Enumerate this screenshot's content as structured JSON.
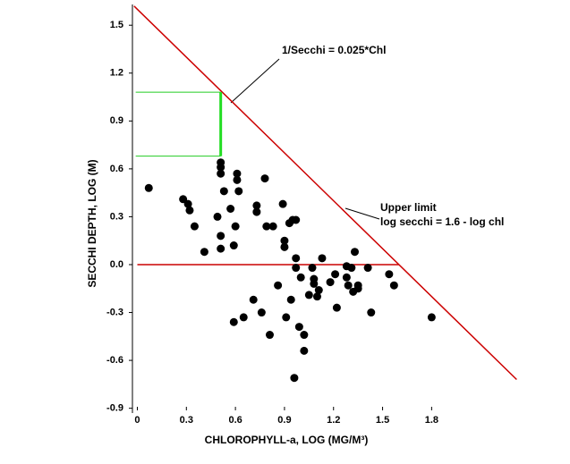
{
  "chart_data": {
    "type": "scatter",
    "x_label": "CHLOROPHYLL-a, LOG (MG/M³)",
    "y_label": "SECCHI DEPTH, LOG (M)",
    "xlim": [
      -0.03,
      2.4
    ],
    "ylim": [
      -0.93,
      1.63
    ],
    "xticks": [
      0,
      0.3,
      0.6,
      0.9,
      1.2,
      1.5,
      1.8
    ],
    "yticks": [
      1.5,
      1.2,
      0.9,
      0.6,
      0.3,
      {
        "value": 0,
        "label": "0.0"
      },
      -0.3,
      -0.6,
      -0.9
    ],
    "color": "#000000",
    "x": [
      0.07,
      0.28,
      0.31,
      0.32,
      0.35,
      0.41,
      0.49,
      0.51,
      0.51,
      0.51,
      0.53,
      0.57,
      0.6,
      0.59,
      0.61,
      0.62,
      0.61,
      0.59,
      0.65,
      0.51,
      0.51,
      0.71,
      0.73,
      0.73,
      0.76,
      0.78,
      0.79,
      0.81,
      0.83,
      0.86,
      0.89,
      0.9,
      0.9,
      0.91,
      0.93,
      0.94,
      0.95,
      0.97,
      0.97,
      0.97,
      0.96,
      0.99,
      1.0,
      1.02,
      1.02,
      1.05,
      1.07,
      1.08,
      1.08,
      1.1,
      1.11,
      1.13,
      1.18,
      1.21,
      1.22,
      1.28,
      1.29,
      1.28,
      1.33,
      1.31,
      1.35,
      1.32,
      1.35,
      1.41,
      1.43,
      1.54,
      1.57,
      1.8
    ],
    "y": [
      0.48,
      0.41,
      0.38,
      0.34,
      0.24,
      0.08,
      0.3,
      0.64,
      0.61,
      0.57,
      0.46,
      0.35,
      0.24,
      0.12,
      0.53,
      0.46,
      0.57,
      -0.36,
      -0.33,
      0.18,
      0.1,
      -0.22,
      0.37,
      0.33,
      -0.3,
      0.54,
      0.24,
      -0.44,
      0.24,
      -0.13,
      0.38,
      0.11,
      0.15,
      -0.33,
      0.26,
      -0.22,
      0.28,
      0.28,
      -0.02,
      0.04,
      -0.71,
      -0.39,
      -0.08,
      -0.44,
      -0.54,
      -0.19,
      -0.02,
      -0.09,
      -0.12,
      -0.2,
      -0.16,
      0.04,
      -0.11,
      -0.06,
      -0.27,
      -0.01,
      -0.13,
      -0.08,
      0.08,
      -0.02,
      -0.13,
      -0.17,
      -0.15,
      -0.02,
      -0.3,
      -0.06,
      -0.13,
      -0.33
    ],
    "reference_lines": [
      {
        "color": "#cc0000",
        "x": [
          -0.02,
          2.32
        ],
        "y": [
          1.62,
          -0.72
        ]
      },
      {
        "color": "#cc0000",
        "x": [
          0,
          1.6
        ],
        "y": [
          0,
          0
        ]
      },
      {
        "color": "#22cc22",
        "x": [
          -0.01,
          0.51
        ],
        "y": [
          1.08,
          1.08
        ]
      },
      {
        "color": "#22cc22",
        "x": [
          -0.01,
          0.51
        ],
        "y": [
          0.68,
          0.68
        ]
      }
    ],
    "highlight": {
      "color": "#22dd22",
      "x": [
        0.51,
        0.51
      ],
      "y": [
        0.68,
        1.08
      ]
    },
    "annotations": [
      "1/Secchi = 0.025*Chl",
      "Upper limit",
      "log secchi = 1.6 - log chl"
    ]
  }
}
